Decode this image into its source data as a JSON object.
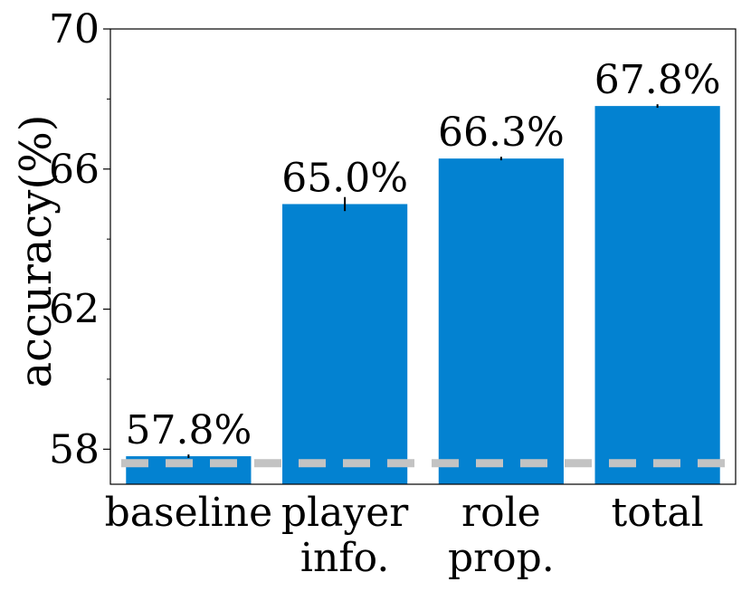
{
  "chart_data": {
    "type": "bar",
    "title": "",
    "xlabel": "",
    "ylabel": "accuracy(%)",
    "categories": [
      [
        "baseline"
      ],
      [
        "player",
        "info."
      ],
      [
        "role",
        "prop."
      ],
      [
        "total"
      ]
    ],
    "values": [
      57.8,
      65.0,
      66.3,
      67.8
    ],
    "data_labels": [
      "57.8%",
      "65.0%",
      "66.3%",
      "67.8%"
    ],
    "error": [
      0.05,
      0.2,
      0.05,
      0.05
    ],
    "ylim": [
      57,
      70
    ],
    "yticks": [
      58,
      62,
      66,
      70
    ],
    "yminor_ticks": [
      60,
      64,
      68
    ],
    "reference_line": {
      "y": 57.6,
      "style": "dashed"
    },
    "grid": false,
    "colors": {
      "bar": "#0382d1",
      "reference": "#c3c3c3",
      "axis": "#000000"
    }
  }
}
